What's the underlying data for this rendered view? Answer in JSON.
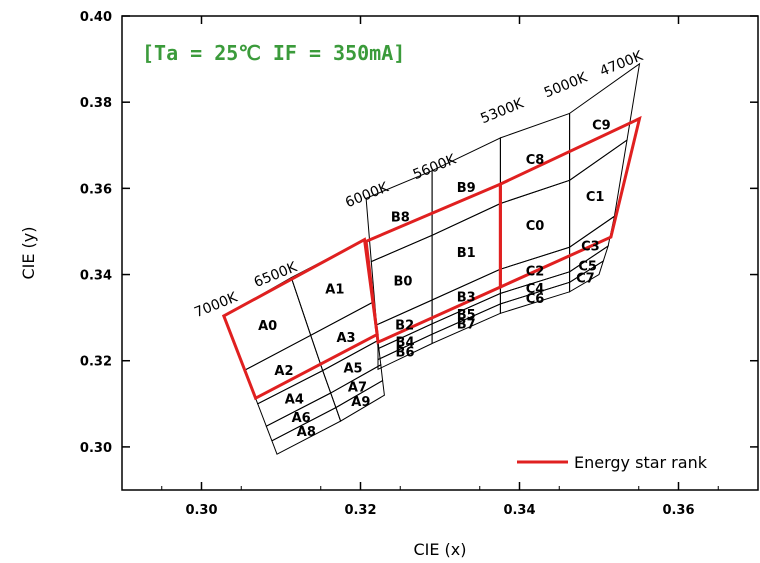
{
  "chart_data": {
    "type": "diagram",
    "title": "",
    "condition_label": "[Ta = 25℃ IF = 350mA]",
    "xlabel": "CIE (x)",
    "ylabel": "CIE (y)",
    "xlim": [
      0.29,
      0.37
    ],
    "ylim": [
      0.29,
      0.4
    ],
    "xticks": [
      0.3,
      0.32,
      0.34,
      0.36
    ],
    "xtick_labels": [
      "0.30",
      "0.32",
      "0.34",
      "0.36"
    ],
    "yticks": [
      0.3,
      0.32,
      0.34,
      0.36,
      0.38,
      0.4
    ],
    "ytick_labels": [
      "0.30",
      "0.32",
      "0.34",
      "0.36",
      "0.38",
      "0.40"
    ],
    "cct_labels": [
      {
        "text": "7000K",
        "x": 0.302,
        "y": 0.332
      },
      {
        "text": "6500K",
        "x": 0.3095,
        "y": 0.339
      },
      {
        "text": "6000K",
        "x": 0.321,
        "y": 0.3575
      },
      {
        "text": "5600K",
        "x": 0.3295,
        "y": 0.364
      },
      {
        "text": "5300K",
        "x": 0.338,
        "y": 0.377
      },
      {
        "text": "5000K",
        "x": 0.346,
        "y": 0.383
      },
      {
        "text": "4700K",
        "x": 0.353,
        "y": 0.388
      }
    ],
    "groups": [
      {
        "name": "A",
        "cols": [
          [
            0.3028,
            0.3304
          ],
          [
            0.3068,
            0.3113
          ],
          [
            0.3095,
            0.2983
          ]
        ],
        "mid": [
          [
            0.3113,
            0.3393
          ],
          [
            0.315,
            0.319
          ],
          [
            0.3175,
            0.306
          ]
        ],
        "right": [
          [
            0.3205,
            0.3481
          ],
          [
            0.3221,
            0.3261
          ],
          [
            0.323,
            0.312
          ]
        ],
        "fractions": [
          0,
          0.33,
          0.55,
          0.75,
          0.88,
          1
        ],
        "bins": [
          [
            "A0",
            "A1"
          ],
          [
            "A2",
            "A3"
          ],
          [
            "A4",
            "A5"
          ],
          [
            "A6",
            "A7"
          ],
          [
            "A8",
            "A9"
          ]
        ]
      },
      {
        "name": "B",
        "cols": [
          [
            0.3207,
            0.3577
          ],
          [
            0.3222,
            0.3243
          ],
          [
            0.3222,
            0.318
          ]
        ],
        "mid": [
          [
            0.329,
            0.3641
          ],
          [
            0.329,
            0.33
          ],
          [
            0.329,
            0.324
          ]
        ],
        "right": [
          [
            0.3376,
            0.3717
          ],
          [
            0.3376,
            0.3371
          ],
          [
            0.3376,
            0.331
          ]
        ],
        "fractions": [
          0,
          0.22,
          0.44,
          0.62,
          0.82,
          1
        ],
        "bins": [
          [
            "B8",
            "B9"
          ],
          [
            "B0",
            "B1"
          ],
          [
            "B2",
            "B3"
          ],
          [
            "B4",
            "B5"
          ],
          [
            "B6",
            "B7"
          ]
        ]
      },
      {
        "name": "C",
        "cols": [
          [
            0.3376,
            0.3717
          ],
          [
            0.3376,
            0.3371
          ],
          [
            0.3376,
            0.331
          ]
        ],
        "mid": [
          [
            0.3463,
            0.3774
          ],
          [
            0.3463,
            0.3421
          ],
          [
            0.3463,
            0.336
          ]
        ],
        "right": [
          [
            0.3551,
            0.3889
          ],
          [
            0.3515,
            0.3487
          ],
          [
            0.35,
            0.34
          ]
        ],
        "fractions": [
          0,
          0.22,
          0.44,
          0.62,
          0.82,
          1
        ],
        "bins": [
          [
            "C8",
            "C9"
          ],
          [
            "C0",
            "C1"
          ],
          [
            "C2",
            "C3"
          ],
          [
            "C4",
            "C5"
          ],
          [
            "C6",
            "C7"
          ]
        ]
      }
    ],
    "energy_star_outline": [
      [
        [
          0.3028,
          0.3304
        ],
        [
          0.3205,
          0.3481
        ],
        [
          0.3221,
          0.3261
        ],
        [
          0.3068,
          0.3113
        ]
      ],
      [
        [
          0.3207,
          0.3477
        ],
        [
          0.3376,
          0.361
        ],
        [
          0.3376,
          0.3371
        ],
        [
          0.3222,
          0.3243
        ]
      ],
      [
        [
          0.3376,
          0.361
        ],
        [
          0.3551,
          0.3762
        ],
        [
          0.3515,
          0.3487
        ],
        [
          0.3376,
          0.3371
        ]
      ]
    ],
    "colors": {
      "grid_line": "#000000",
      "energy_star": "#e02020",
      "condition": "#3b9b3b"
    },
    "legend": [
      {
        "name": "Energy star rank",
        "color": "#e02020",
        "position": "bottom-right"
      }
    ]
  }
}
